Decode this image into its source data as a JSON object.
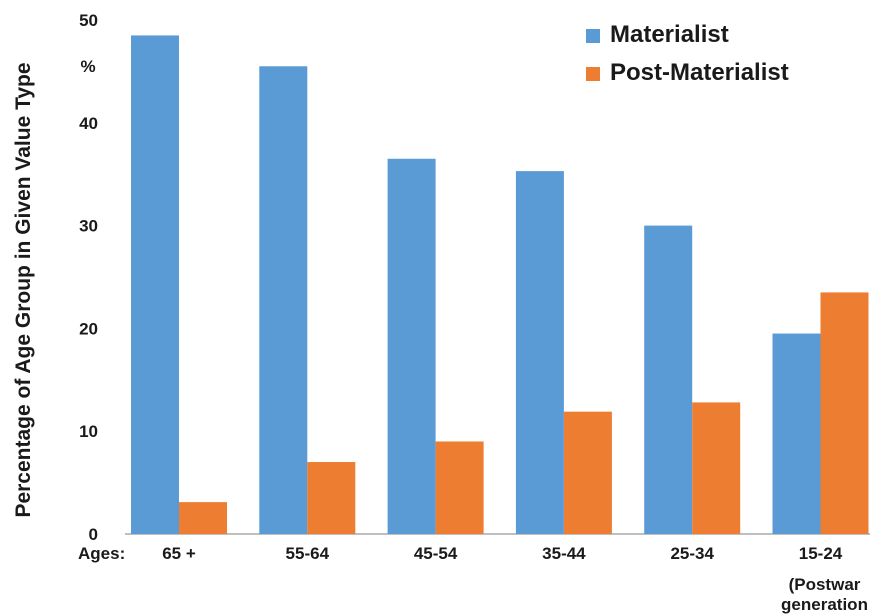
{
  "chart_data": {
    "type": "bar",
    "ylabel": "Percentage of Age Group in Given Value Type",
    "y_unit": "%",
    "x_prefix": "Ages:",
    "categories": [
      "65 +",
      "55-64",
      "45-54",
      "35-44",
      "25-34",
      "15-24"
    ],
    "category_note": {
      "index": 5,
      "lines": [
        "(Postwar",
        "generation"
      ]
    },
    "ylim": [
      0,
      50
    ],
    "yticks": [
      0,
      10,
      20,
      30,
      40,
      50
    ],
    "grid": false,
    "legend_position": "top-right",
    "series": [
      {
        "name": "Materialist",
        "color": "#5b9bd5",
        "values": [
          48.5,
          45.5,
          36.5,
          35.3,
          30,
          19.5
        ]
      },
      {
        "name": "Post-Materialist",
        "color": "#ed7d31",
        "values": [
          3.1,
          7,
          9,
          11.9,
          12.8,
          23.5
        ]
      }
    ]
  }
}
